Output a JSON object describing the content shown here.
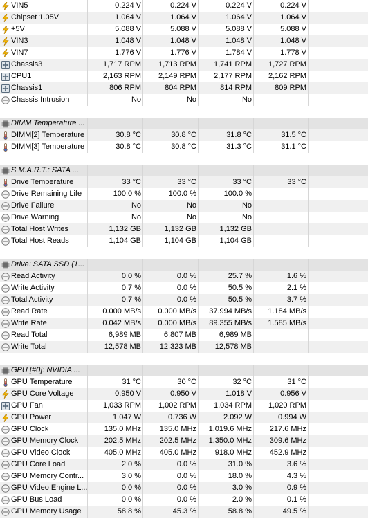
{
  "rows": [
    {
      "type": "sensor",
      "icon": "voltage",
      "name": "VIN5",
      "values": [
        "0.224 V",
        "0.224 V",
        "0.224 V",
        "0.224 V"
      ]
    },
    {
      "type": "sensor",
      "icon": "voltage",
      "name": "Chipset 1.05V",
      "values": [
        "1.064 V",
        "1.064 V",
        "1.064 V",
        "1.064 V"
      ]
    },
    {
      "type": "sensor",
      "icon": "voltage",
      "name": "+5V",
      "values": [
        "5.088 V",
        "5.088 V",
        "5.088 V",
        "5.088 V"
      ]
    },
    {
      "type": "sensor",
      "icon": "voltage",
      "name": "VIN3",
      "values": [
        "1.048 V",
        "1.048 V",
        "1.048 V",
        "1.048 V"
      ]
    },
    {
      "type": "sensor",
      "icon": "voltage",
      "name": "VIN7",
      "values": [
        "1.776 V",
        "1.776 V",
        "1.784 V",
        "1.778 V"
      ]
    },
    {
      "type": "sensor",
      "icon": "fan",
      "name": "Chassis3",
      "values": [
        "1,717 RPM",
        "1,713 RPM",
        "1,741 RPM",
        "1,727 RPM"
      ]
    },
    {
      "type": "sensor",
      "icon": "fan",
      "name": "CPU1",
      "values": [
        "2,163 RPM",
        "2,149 RPM",
        "2,177 RPM",
        "2,162 RPM"
      ]
    },
    {
      "type": "sensor",
      "icon": "fan",
      "name": "Chassis1",
      "values": [
        "806 RPM",
        "804 RPM",
        "814 RPM",
        "809 RPM"
      ]
    },
    {
      "type": "sensor",
      "icon": "gauge",
      "name": "Chassis Intrusion",
      "values": [
        "No",
        "No",
        "No",
        ""
      ]
    },
    {
      "type": "empty"
    },
    {
      "type": "header",
      "icon": "chip",
      "name": "DIMM Temperature ..."
    },
    {
      "type": "sensor",
      "icon": "temperature",
      "name": "DIMM[2] Temperature",
      "values": [
        "30.8 °C",
        "30.8 °C",
        "31.8 °C",
        "31.5 °C"
      ]
    },
    {
      "type": "sensor",
      "icon": "temperature",
      "name": "DIMM[3] Temperature",
      "values": [
        "30.8 °C",
        "30.8 °C",
        "31.3 °C",
        "31.1 °C"
      ]
    },
    {
      "type": "empty"
    },
    {
      "type": "header",
      "icon": "chip",
      "name": "S.M.A.R.T.: SATA ..."
    },
    {
      "type": "sensor",
      "icon": "temperature",
      "name": "Drive Temperature",
      "values": [
        "33 °C",
        "33 °C",
        "33 °C",
        "33 °C"
      ]
    },
    {
      "type": "sensor",
      "icon": "gauge",
      "name": "Drive Remaining Life",
      "values": [
        "100.0 %",
        "100.0 %",
        "100.0 %",
        ""
      ]
    },
    {
      "type": "sensor",
      "icon": "gauge",
      "name": "Drive Failure",
      "values": [
        "No",
        "No",
        "No",
        ""
      ]
    },
    {
      "type": "sensor",
      "icon": "gauge",
      "name": "Drive Warning",
      "values": [
        "No",
        "No",
        "No",
        ""
      ]
    },
    {
      "type": "sensor",
      "icon": "gauge",
      "name": "Total Host Writes",
      "values": [
        "1,132 GB",
        "1,132 GB",
        "1,132 GB",
        ""
      ]
    },
    {
      "type": "sensor",
      "icon": "gauge",
      "name": "Total Host Reads",
      "values": [
        "1,104 GB",
        "1,104 GB",
        "1,104 GB",
        ""
      ]
    },
    {
      "type": "empty"
    },
    {
      "type": "header",
      "icon": "chip",
      "name": "Drive: SATA SSD (1..."
    },
    {
      "type": "sensor",
      "icon": "gauge",
      "name": "Read Activity",
      "values": [
        "0.0 %",
        "0.0 %",
        "25.7 %",
        "1.6 %"
      ]
    },
    {
      "type": "sensor",
      "icon": "gauge",
      "name": "Write Activity",
      "values": [
        "0.7 %",
        "0.0 %",
        "50.5 %",
        "2.1 %"
      ]
    },
    {
      "type": "sensor",
      "icon": "gauge",
      "name": "Total Activity",
      "values": [
        "0.7 %",
        "0.0 %",
        "50.5 %",
        "3.7 %"
      ]
    },
    {
      "type": "sensor",
      "icon": "gauge",
      "name": "Read Rate",
      "values": [
        "0.000 MB/s",
        "0.000 MB/s",
        "37.994 MB/s",
        "1.184 MB/s"
      ]
    },
    {
      "type": "sensor",
      "icon": "gauge",
      "name": "Write Rate",
      "values": [
        "0.042 MB/s",
        "0.000 MB/s",
        "89.355 MB/s",
        "1.585 MB/s"
      ]
    },
    {
      "type": "sensor",
      "icon": "gauge",
      "name": "Read Total",
      "values": [
        "6,989 MB",
        "6,807 MB",
        "6,989 MB",
        ""
      ]
    },
    {
      "type": "sensor",
      "icon": "gauge",
      "name": "Write Total",
      "values": [
        "12,578 MB",
        "12,323 MB",
        "12,578 MB",
        ""
      ]
    },
    {
      "type": "empty"
    },
    {
      "type": "header",
      "icon": "chip",
      "name": "GPU [#0]: NVIDIA ..."
    },
    {
      "type": "sensor",
      "icon": "temperature",
      "name": "GPU Temperature",
      "values": [
        "31 °C",
        "30 °C",
        "32 °C",
        "31 °C"
      ]
    },
    {
      "type": "sensor",
      "icon": "voltage",
      "name": "GPU Core Voltage",
      "values": [
        "0.950 V",
        "0.950 V",
        "1.018 V",
        "0.956 V"
      ]
    },
    {
      "type": "sensor",
      "icon": "fan",
      "name": "GPU Fan",
      "values": [
        "1,033 RPM",
        "1,002 RPM",
        "1,034 RPM",
        "1,020 RPM"
      ]
    },
    {
      "type": "sensor",
      "icon": "voltage",
      "name": "GPU Power",
      "values": [
        "1.047 W",
        "0.736 W",
        "2.092 W",
        "0.994 W"
      ]
    },
    {
      "type": "sensor",
      "icon": "gauge",
      "name": "GPU Clock",
      "values": [
        "135.0 MHz",
        "135.0 MHz",
        "1,019.6 MHz",
        "217.6 MHz"
      ]
    },
    {
      "type": "sensor",
      "icon": "gauge",
      "name": "GPU Memory Clock",
      "values": [
        "202.5 MHz",
        "202.5 MHz",
        "1,350.0 MHz",
        "309.6 MHz"
      ]
    },
    {
      "type": "sensor",
      "icon": "gauge",
      "name": "GPU Video Clock",
      "values": [
        "405.0 MHz",
        "405.0 MHz",
        "918.0 MHz",
        "452.9 MHz"
      ]
    },
    {
      "type": "sensor",
      "icon": "gauge",
      "name": "GPU Core Load",
      "values": [
        "2.0 %",
        "0.0 %",
        "31.0 %",
        "3.6 %"
      ]
    },
    {
      "type": "sensor",
      "icon": "gauge",
      "name": "GPU Memory Contr...",
      "values": [
        "3.0 %",
        "0.0 %",
        "18.0 %",
        "4.3 %"
      ]
    },
    {
      "type": "sensor",
      "icon": "gauge",
      "name": "GPU Video Engine L...",
      "values": [
        "0.0 %",
        "0.0 %",
        "3.0 %",
        "0.9 %"
      ]
    },
    {
      "type": "sensor",
      "icon": "gauge",
      "name": "GPU Bus Load",
      "values": [
        "0.0 %",
        "0.0 %",
        "2.0 %",
        "0.1 %"
      ]
    },
    {
      "type": "sensor",
      "icon": "gauge",
      "name": "GPU Memory Usage",
      "values": [
        "58.8 %",
        "45.3 %",
        "58.8 %",
        "49.5 %"
      ]
    }
  ],
  "colors": {
    "alt_row": "#f0f0f0",
    "header_row": "#e3e3e3",
    "grid": "#d6d6d6",
    "voltage_icon": "#f2b400",
    "fan_icon": "#5a6c7d",
    "temperature_icon": "#3d6fd8"
  }
}
